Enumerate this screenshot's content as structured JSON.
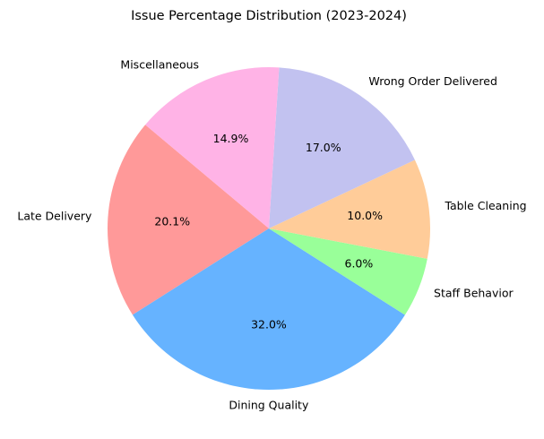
{
  "chart_data": {
    "type": "pie",
    "title": "Issue Percentage Distribution (2023-2024)",
    "start_angle_deg": 140,
    "direction": "counterclockwise",
    "slices": [
      {
        "label": "Late Delivery",
        "value": 20.1,
        "pct_label": "20.1%",
        "color": "#ff9999"
      },
      {
        "label": "Dining Quality",
        "value": 32.0,
        "pct_label": "32.0%",
        "color": "#66b3ff"
      },
      {
        "label": "Staff Behavior",
        "value": 6.0,
        "pct_label": "6.0%",
        "color": "#99ff99"
      },
      {
        "label": "Table Cleaning",
        "value": 10.0,
        "pct_label": "10.0%",
        "color": "#ffcc99"
      },
      {
        "label": "Wrong Order Delivered",
        "value": 17.0,
        "pct_label": "17.0%",
        "color": "#c2c2f0"
      },
      {
        "label": "Miscellaneous",
        "value": 14.9,
        "pct_label": "14.9%",
        "color": "#ffb3e6"
      }
    ]
  }
}
